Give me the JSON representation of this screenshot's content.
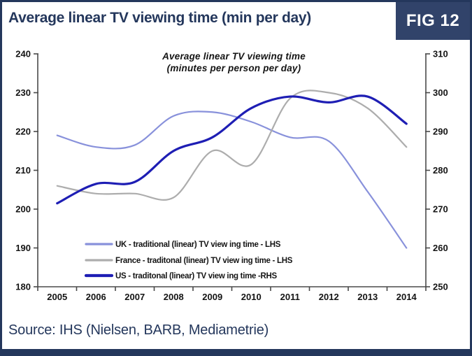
{
  "header": {
    "title": "Average linear TV viewing time (min per day)",
    "fig_label": "FIG 12"
  },
  "footer": {
    "source": "Source: IHS (Nielsen, BARB, Mediametrie)"
  },
  "colors": {
    "navy_border": "#24375C",
    "badge_bg": "#31436A",
    "uk_line": "#8891DB",
    "france_line": "#ADADAD",
    "us_line": "#1E1EB4",
    "axis": "#4a4a4a",
    "text": "#141414"
  },
  "chart_data": {
    "type": "line",
    "title": "Average linear TV viewing time",
    "subtitle": "(minutes per person per day)",
    "x": [
      2005,
      2006,
      2007,
      2008,
      2009,
      2010,
      2011,
      2012,
      2013,
      2014
    ],
    "left_axis": {
      "min": 180,
      "max": 240,
      "step": 10,
      "ticks": [
        240,
        230,
        220,
        210,
        200,
        190,
        180
      ]
    },
    "right_axis": {
      "min": 250,
      "max": 310,
      "step": 10,
      "ticks": [
        310,
        300,
        290,
        280,
        270,
        260,
        250
      ]
    },
    "grid": false,
    "legend_position": "inside-bottom-left",
    "series": [
      {
        "name": "UK - traditional (linear) TV view ing time - LHS",
        "axis": "left",
        "color": "#8891DB",
        "values": [
          219,
          216,
          216.5,
          224,
          225,
          222.5,
          218.5,
          217.5,
          204.5,
          190
        ]
      },
      {
        "name": "France  - traditonal (linear) TV view ing time - LHS",
        "axis": "left",
        "color": "#ADADAD",
        "values": [
          206,
          204,
          204,
          203,
          215,
          211.5,
          228.5,
          230,
          226,
          216
        ]
      },
      {
        "name": "US  - traditonal (linear) TV  view ing time -RHS",
        "axis": "right",
        "color": "#1E1EB4",
        "values": [
          271.5,
          276.5,
          277,
          285,
          288.5,
          296,
          299,
          297.5,
          299,
          292
        ]
      }
    ]
  }
}
